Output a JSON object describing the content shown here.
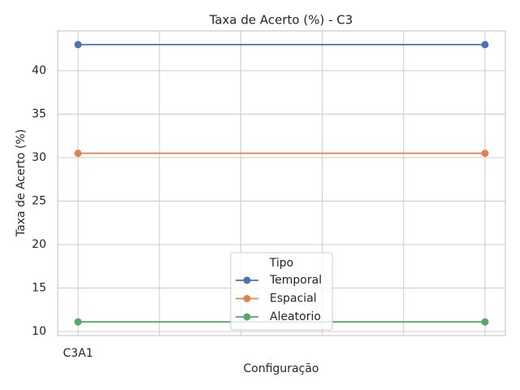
{
  "chart_data": {
    "type": "line",
    "title": "Taxa de Acerto (%) - C3",
    "xlabel": "Configuração",
    "ylabel": "Taxa de Acerto (%)",
    "x": [
      0,
      1
    ],
    "xlim": [
      -0.05,
      1.05
    ],
    "xticks": [
      {
        "value": 0,
        "label": "C3A1"
      },
      {
        "value": 0.2,
        "label": null
      },
      {
        "value": 0.4,
        "label": null
      },
      {
        "value": 0.6,
        "label": null
      },
      {
        "value": 0.8,
        "label": null
      },
      {
        "value": 1,
        "label": null
      }
    ],
    "ylim": [
      9.53,
      44.58
    ],
    "yticks": [
      10,
      15,
      20,
      25,
      30,
      35,
      40
    ],
    "grid": true,
    "legend_title": "Tipo",
    "legend_loc": "lower center",
    "series": [
      {
        "name": "Temporal",
        "color": "#4c72b0",
        "values": [
          43.0,
          43.0
        ]
      },
      {
        "name": "Espacial",
        "color": "#dd8452",
        "values": [
          30.5,
          30.5
        ]
      },
      {
        "name": "Aleatorio",
        "color": "#55a868",
        "values": [
          11.1,
          11.1
        ]
      }
    ]
  }
}
